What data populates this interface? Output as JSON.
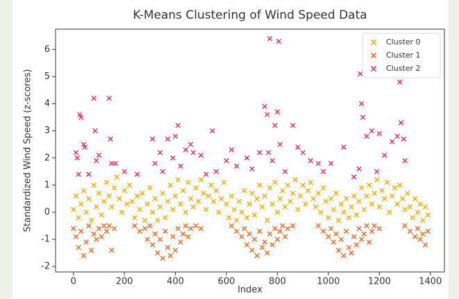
{
  "chart_data": {
    "type": "scatter",
    "title": "K-Means Clustering of Wind Speed Data",
    "xlabel": "Index",
    "ylabel": "Standardized Wind Speed (z-scores)",
    "xlim": [
      -70,
      1455
    ],
    "ylim": [
      -2.2,
      6.75
    ],
    "xticks": [
      0,
      200,
      400,
      600,
      800,
      1000,
      1200,
      1400
    ],
    "yticks": [
      -2,
      -1,
      0,
      1,
      2,
      3,
      4,
      5,
      6
    ],
    "legend": "upper right",
    "marker": "x",
    "series": [
      {
        "name": "Cluster 0",
        "color": "#f6ac00",
        "x": [
          0,
          10,
          20,
          30,
          40,
          50,
          60,
          70,
          80,
          90,
          100,
          110,
          120,
          130,
          140,
          150,
          160,
          170,
          180,
          190,
          200,
          210,
          220,
          230,
          240,
          250,
          260,
          270,
          280,
          290,
          300,
          310,
          320,
          330,
          340,
          350,
          360,
          370,
          380,
          390,
          400,
          410,
          420,
          430,
          440,
          450,
          460,
          470,
          480,
          490,
          500,
          510,
          520,
          530,
          540,
          550,
          560,
          570,
          580,
          590,
          600,
          610,
          620,
          630,
          640,
          650,
          660,
          670,
          680,
          690,
          700,
          710,
          720,
          730,
          740,
          750,
          760,
          770,
          780,
          790,
          800,
          810,
          820,
          830,
          840,
          850,
          860,
          870,
          880,
          890,
          900,
          910,
          920,
          930,
          940,
          950,
          960,
          970,
          980,
          990,
          1000,
          1010,
          1020,
          1030,
          1040,
          1050,
          1060,
          1070,
          1080,
          1090,
          1100,
          1110,
          1120,
          1130,
          1140,
          1150,
          1160,
          1170,
          1180,
          1190,
          1200,
          1210,
          1220,
          1230,
          1240,
          1250,
          1260,
          1270,
          1280,
          1290,
          1300,
          1310,
          1320,
          1330,
          1340,
          1350,
          1360,
          1370,
          1380,
          1390
        ],
        "values": [
          0.1,
          0.6,
          -0.2,
          0.3,
          0.8,
          0.0,
          0.5,
          -0.3,
          1.0,
          0.2,
          0.7,
          -0.1,
          0.4,
          1.1,
          0.6,
          0.2,
          0.9,
          1.3,
          0.5,
          0.0,
          0.8,
          0.3,
          1.0,
          0.4,
          -0.2,
          0.6,
          0.1,
          0.7,
          -0.3,
          0.3,
          0.9,
          0.0,
          0.5,
          -0.3,
          0.2,
          0.7,
          -0.2,
          0.4,
          1.0,
          0.1,
          0.6,
          1.2,
          0.3,
          0.8,
          0.0,
          1.1,
          0.5,
          0.2,
          0.9,
          0.4,
          1.2,
          0.7,
          0.1,
          0.6,
          1.0,
          0.4,
          0.8,
          0.0,
          0.5,
          1.1,
          0.3,
          -0.2,
          0.6,
          0.1,
          -0.3,
          0.4,
          0.0,
          0.8,
          -0.2,
          0.3,
          0.7,
          -0.1,
          0.5,
          1.0,
          0.2,
          0.6,
          -0.3,
          0.9,
          0.3,
          1.1,
          0.0,
          0.5,
          0.8,
          0.2,
          1.0,
          0.4,
          0.7,
          1.2,
          0.1,
          0.6,
          1.0,
          0.3,
          0.8,
          1.1,
          0.5,
          0.2,
          0.7,
          0.0,
          0.9,
          0.4,
          -0.2,
          0.5,
          0.1,
          0.7,
          -0.3,
          0.3,
          0.0,
          0.5,
          -0.2,
          0.2,
          0.6,
          -0.1,
          0.4,
          0.9,
          0.1,
          0.6,
          1.0,
          0.3,
          0.7,
          1.2,
          0.2,
          0.8,
          0.5,
          1.1,
          0.0,
          0.6,
          0.9,
          0.3,
          1.0,
          0.5,
          0.1,
          0.7,
          0.2,
          -0.2,
          0.5,
          0.0,
          0.3,
          -0.3,
          0.2,
          -0.1
        ]
      },
      {
        "name": "Cluster 1",
        "color": "#ea6a2a",
        "x": [
          0,
          10,
          20,
          30,
          40,
          50,
          60,
          70,
          80,
          90,
          100,
          110,
          120,
          130,
          140,
          150,
          160,
          240,
          260,
          280,
          290,
          300,
          310,
          320,
          330,
          340,
          350,
          360,
          370,
          380,
          390,
          400,
          410,
          420,
          430,
          440,
          450,
          460,
          480,
          500,
          620,
          640,
          660,
          670,
          680,
          690,
          700,
          710,
          720,
          730,
          740,
          750,
          760,
          770,
          780,
          790,
          800,
          810,
          820,
          830,
          840,
          860,
          960,
          980,
          1000,
          1010,
          1020,
          1030,
          1040,
          1050,
          1060,
          1070,
          1080,
          1090,
          1100,
          1110,
          1120,
          1130,
          1140,
          1150,
          1160,
          1170,
          1180,
          1200,
          1300,
          1320,
          1340,
          1350,
          1360,
          1370,
          1380,
          1390
        ],
        "values": [
          -0.6,
          -0.9,
          -1.3,
          -0.7,
          -1.6,
          -1.1,
          -0.5,
          -1.4,
          -0.8,
          -1.0,
          -0.6,
          -0.9,
          -0.5,
          -0.7,
          -0.5,
          -1.4,
          -0.6,
          -0.5,
          -0.7,
          -0.6,
          -1.0,
          -0.5,
          -1.2,
          -0.8,
          -1.5,
          -1.0,
          -1.7,
          -0.7,
          -1.3,
          -1.6,
          -0.9,
          -1.4,
          -0.6,
          -1.1,
          -0.8,
          -0.5,
          -0.9,
          -0.6,
          -0.5,
          -0.6,
          -0.5,
          -0.7,
          -0.9,
          -0.6,
          -1.2,
          -0.8,
          -1.4,
          -1.0,
          -1.6,
          -0.7,
          -1.3,
          -1.1,
          -1.5,
          -0.8,
          -1.2,
          -0.6,
          -1.0,
          -0.7,
          -0.5,
          -0.9,
          -0.6,
          -0.5,
          -0.5,
          -0.7,
          -0.9,
          -0.6,
          -1.1,
          -0.8,
          -1.4,
          -1.0,
          -1.6,
          -0.7,
          -1.3,
          -1.5,
          -0.9,
          -1.2,
          -0.6,
          -1.0,
          -0.8,
          -0.5,
          -1.1,
          -0.7,
          -0.5,
          -0.6,
          -0.5,
          -0.7,
          -0.9,
          -0.6,
          -1.0,
          -0.8,
          -1.2,
          -0.7
        ]
      },
      {
        "name": "Cluster 2",
        "color": "#e0365c",
        "x": [
          10,
          15,
          20,
          25,
          30,
          40,
          45,
          60,
          80,
          85,
          90,
          100,
          140,
          145,
          150,
          165,
          200,
          250,
          310,
          320,
          340,
          350,
          370,
          390,
          400,
          410,
          420,
          440,
          460,
          470,
          500,
          520,
          545,
          560,
          600,
          620,
          640,
          680,
          700,
          730,
          750,
          760,
          765,
          770,
          780,
          790,
          800,
          805,
          810,
          830,
          860,
          880,
          900,
          930,
          960,
          980,
          1010,
          1060,
          1100,
          1120,
          1125,
          1130,
          1135,
          1150,
          1170,
          1190,
          1200,
          1220,
          1250,
          1270,
          1280,
          1285,
          1295,
          1300
        ],
        "values": [
          2.2,
          2.0,
          1.4,
          3.6,
          3.5,
          2.5,
          2.4,
          1.4,
          4.2,
          3.0,
          1.9,
          2.1,
          4.2,
          2.7,
          1.8,
          1.8,
          1.5,
          1.4,
          2.7,
          1.8,
          2.2,
          1.5,
          2.7,
          2.0,
          2.8,
          3.2,
          1.7,
          2.3,
          2.5,
          2.2,
          2.1,
          1.4,
          3.0,
          1.5,
          1.9,
          2.3,
          1.7,
          2.0,
          1.6,
          2.2,
          3.9,
          3.6,
          2.2,
          6.4,
          1.9,
          3.2,
          3.7,
          6.3,
          2.5,
          1.5,
          3.2,
          2.4,
          2.2,
          1.9,
          1.8,
          1.5,
          1.8,
          2.4,
          1.3,
          1.6,
          5.1,
          4.0,
          3.5,
          2.8,
          3.0,
          1.5,
          2.9,
          2.1,
          2.6,
          2.8,
          4.8,
          3.3,
          2.7,
          1.9
        ]
      }
    ]
  }
}
